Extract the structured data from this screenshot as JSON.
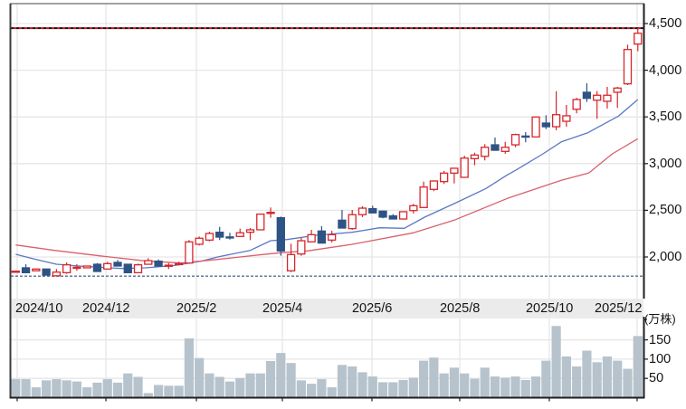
{
  "chart_data": {
    "type": "candlestick",
    "title": "",
    "period": "weekly",
    "x_ticks": [
      {
        "label": "2024/10",
        "pos": 0.15
      },
      {
        "label": "2024/12",
        "pos": 8.85
      },
      {
        "label": "2025/2",
        "pos": 17.72
      },
      {
        "label": "2025/4",
        "pos": 26.15
      },
      {
        "label": "2025/6",
        "pos": 34.93
      },
      {
        "label": "2025/8",
        "pos": 43.54
      },
      {
        "label": "2025/10",
        "pos": 52.32
      },
      {
        "label": "2025/12",
        "pos": 60.93
      }
    ],
    "price_axis": {
      "position": "right",
      "ticks": [
        {
          "value": 4500,
          "label": "4,500"
        },
        {
          "value": 4000,
          "label": "4,000"
        },
        {
          "value": 3500,
          "label": "3,500"
        },
        {
          "value": 3000,
          "label": "3,000"
        },
        {
          "value": 2500,
          "label": "2,500"
        },
        {
          "value": 2000,
          "label": "2,000"
        }
      ],
      "range": [
        1740,
        4710
      ]
    },
    "volume_axis": {
      "position": "right",
      "unit": "(万株)",
      "ticks": [
        {
          "value": 150,
          "label": "150"
        },
        {
          "value": 100,
          "label": "100"
        },
        {
          "value": 50,
          "label": "50"
        }
      ],
      "range": [
        0,
        205
      ]
    },
    "candles_format": [
      "open",
      "high",
      "low",
      "close"
    ],
    "candles": [
      [
        1840,
        1855,
        1835,
        1848
      ],
      [
        1884,
        1922,
        1830,
        1832
      ],
      [
        1852,
        1875,
        1848,
        1871
      ],
      [
        1871,
        1875,
        1805,
        1806
      ],
      [
        1798,
        1871,
        1795,
        1838
      ],
      [
        1832,
        1942,
        1819,
        1916
      ],
      [
        1885,
        1922,
        1852,
        1890
      ],
      [
        1884,
        1905,
        1882,
        1903
      ],
      [
        1922,
        1935,
        1843,
        1845
      ],
      [
        1871,
        1949,
        1868,
        1929
      ],
      [
        1942,
        1968,
        1900,
        1903
      ],
      [
        1922,
        1925,
        1830,
        1832
      ],
      [
        1832,
        1929,
        1830,
        1916
      ],
      [
        1922,
        1987,
        1920,
        1961
      ],
      [
        1955,
        1974,
        1900,
        1903
      ],
      [
        1908,
        1935,
        1871,
        1912
      ],
      [
        1925,
        1949,
        1910,
        1930
      ],
      [
        1935,
        2181,
        1933,
        2162
      ],
      [
        2136,
        2220,
        2123,
        2201
      ],
      [
        2181,
        2271,
        2168,
        2252
      ],
      [
        2265,
        2323,
        2181,
        2213
      ],
      [
        2215,
        2259,
        2187,
        2210
      ],
      [
        2220,
        2304,
        2215,
        2259
      ],
      [
        2265,
        2310,
        2181,
        2291
      ],
      [
        2291,
        2465,
        2288,
        2459
      ],
      [
        2470,
        2530,
        2420,
        2478
      ],
      [
        2420,
        2433,
        2013,
        2065
      ],
      [
        1852,
        2142,
        1838,
        2026
      ],
      [
        2032,
        2207,
        2013,
        2174
      ],
      [
        2162,
        2291,
        2155,
        2239
      ],
      [
        2278,
        2330,
        2145,
        2149
      ],
      [
        2181,
        2280,
        2155,
        2239
      ],
      [
        2394,
        2504,
        2305,
        2310
      ],
      [
        2304,
        2504,
        2291,
        2453
      ],
      [
        2453,
        2543,
        2427,
        2523
      ],
      [
        2517,
        2549,
        2465,
        2472
      ],
      [
        2491,
        2495,
        2414,
        2427
      ],
      [
        2440,
        2459,
        2405,
        2407
      ],
      [
        2407,
        2490,
        2400,
        2485
      ],
      [
        2497,
        2569,
        2465,
        2549
      ],
      [
        2530,
        2807,
        2523,
        2749
      ],
      [
        2724,
        2820,
        2705,
        2814
      ],
      [
        2807,
        2923,
        2782,
        2898
      ],
      [
        2898,
        2955,
        2788,
        2950
      ],
      [
        2853,
        3085,
        2850,
        3059
      ],
      [
        3053,
        3117,
        2982,
        3092
      ],
      [
        3078,
        3208,
        3034,
        3175
      ],
      [
        3201,
        3279,
        3140,
        3143
      ],
      [
        3131,
        3233,
        3105,
        3175
      ],
      [
        3201,
        3320,
        3175,
        3311
      ],
      [
        3295,
        3337,
        3228,
        3290
      ],
      [
        3286,
        3505,
        3280,
        3499
      ],
      [
        3434,
        3518,
        3369,
        3395
      ],
      [
        3395,
        3776,
        3357,
        3524
      ],
      [
        3453,
        3628,
        3395,
        3512
      ],
      [
        3582,
        3705,
        3538,
        3686
      ],
      [
        3764,
        3860,
        3660,
        3699
      ],
      [
        3679,
        3776,
        3480,
        3732
      ],
      [
        3667,
        3822,
        3589,
        3732
      ],
      [
        3764,
        3822,
        3596,
        3809
      ],
      [
        3854,
        4274,
        3841,
        4222
      ],
      [
        4280,
        4450,
        4203,
        4396
      ]
    ],
    "volume": [
      48,
      48,
      27,
      45,
      48,
      45,
      42,
      27,
      39,
      48,
      39,
      63,
      54,
      12,
      33,
      31,
      31,
      154,
      103,
      63,
      54,
      42,
      51,
      63,
      63,
      95,
      116,
      90,
      45,
      36,
      48,
      27,
      85,
      81,
      66,
      55,
      40,
      40,
      46,
      52,
      96,
      104,
      63,
      78,
      63,
      49,
      78,
      55,
      52,
      55,
      46,
      55,
      96,
      186,
      107,
      81,
      122,
      92,
      107,
      96,
      75,
      160
    ],
    "moving_averages": [
      {
        "id": "ma-short-line",
        "name": "short-term moving average",
        "color": "#5a78c2",
        "points": [
          [
            0,
            2029
          ],
          [
            2,
            1974
          ],
          [
            4,
            1922
          ],
          [
            6.2,
            1903
          ],
          [
            10.3,
            1877
          ],
          [
            12.7,
            1884
          ],
          [
            15.5,
            1908
          ],
          [
            18.2,
            1955
          ],
          [
            19.8,
            2000
          ],
          [
            23,
            2071
          ],
          [
            25,
            2174
          ],
          [
            26.6,
            2187
          ],
          [
            29.5,
            2233
          ],
          [
            33,
            2265
          ],
          [
            35.7,
            2313
          ],
          [
            38.1,
            2307
          ],
          [
            40.1,
            2426
          ],
          [
            43,
            2572
          ],
          [
            46.1,
            2733
          ],
          [
            48.2,
            2879
          ],
          [
            49,
            2927
          ],
          [
            51.7,
            3105
          ],
          [
            53.5,
            3233
          ],
          [
            56.1,
            3330
          ],
          [
            59.1,
            3509
          ],
          [
            61,
            3686
          ]
        ]
      },
      {
        "id": "ma-long-line",
        "name": "long-term moving average",
        "color": "#d9606c",
        "points": [
          [
            0,
            2129
          ],
          [
            3.8,
            2071
          ],
          [
            8.2,
            2013
          ],
          [
            12.7,
            1958
          ],
          [
            16.2,
            1935
          ],
          [
            19.8,
            1974
          ],
          [
            24.2,
            2026
          ],
          [
            26,
            2046
          ],
          [
            28.6,
            2065
          ],
          [
            33,
            2136
          ],
          [
            39,
            2259
          ],
          [
            43,
            2394
          ],
          [
            48.2,
            2627
          ],
          [
            53.5,
            2821
          ],
          [
            56.2,
            2900
          ],
          [
            58.5,
            3105
          ],
          [
            61,
            3266
          ]
        ]
      }
    ],
    "reference_lines": [
      {
        "name": "period-high-line",
        "value": 4450,
        "style": "dotted",
        "colors": [
          "#cc1122",
          "#111111"
        ]
      },
      {
        "name": "period-low-line",
        "value": 1795,
        "style": "dashed",
        "color": "#5b6e92"
      }
    ],
    "colors": {
      "up": "#d6262c",
      "down": "#2e5384",
      "volume": "#b6c3cc",
      "grid": "#e6e6e6",
      "date_band": "#ebebeb",
      "axis": "#1e1e1e",
      "frame": "#6a6a6a"
    },
    "legend": [],
    "grid": true,
    "xlabel": "",
    "ylabel": ""
  }
}
